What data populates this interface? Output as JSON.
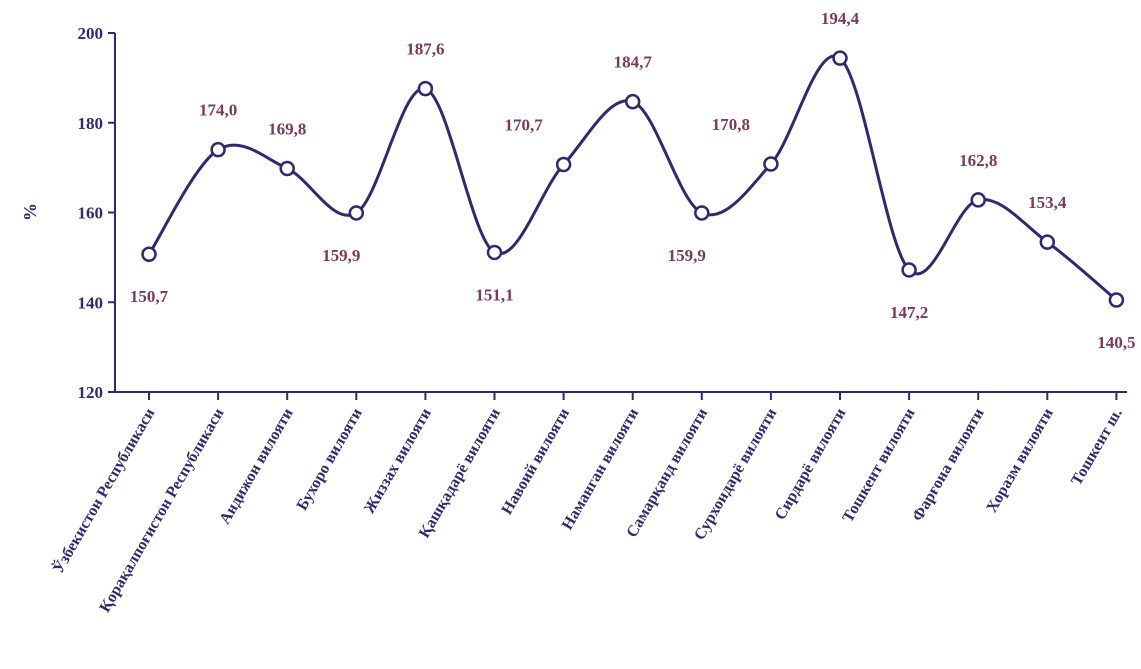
{
  "chart_data": {
    "type": "line",
    "title": "",
    "xlabel": "",
    "ylabel": "%",
    "ylim": [
      120,
      200
    ],
    "yticks": [
      120,
      140,
      160,
      180,
      200
    ],
    "grid": false,
    "categories": [
      "Ўзбекистон Республикаси",
      "Қорақалпоғистон Республикаси",
      "Андижон вилояти",
      "Бухоро вилояти",
      "Жиззах вилояти",
      "Қашқадарё вилояти",
      "Навоий вилояти",
      "Наманган вилояти",
      "Самарқанд вилояти",
      "Сурхондарё вилояти",
      "Сирдарё вилояти",
      "Тошкент вилояти",
      "Фарғона вилояти",
      "Хоразм вилояти",
      "Тошкент ш."
    ],
    "values": [
      150.7,
      174.0,
      169.8,
      159.9,
      187.6,
      151.1,
      170.7,
      184.7,
      159.9,
      170.8,
      194.4,
      147.2,
      162.8,
      153.4,
      140.5
    ],
    "data_labels": [
      "150,7",
      "174,0",
      "169,8",
      "159,9",
      "187,6",
      "151,1",
      "170,7",
      "184,7",
      "159,9",
      "170,8",
      "194,4",
      "147,2",
      "162,8",
      "153,4",
      "140,5"
    ],
    "colors": {
      "line": "#2e2a6e",
      "axis": "#2e2a6e",
      "label": "#7a3a5a",
      "marker_fill": "#ffffff"
    }
  }
}
